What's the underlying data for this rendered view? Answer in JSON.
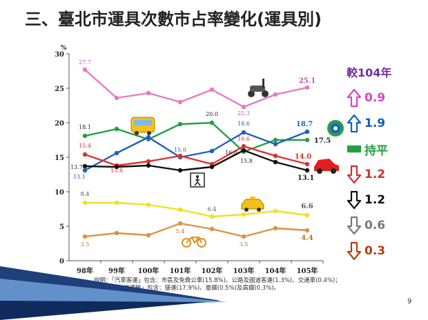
{
  "title": "三、臺北市運具次數市占率變化(運具別)",
  "legend": {
    "title": "較104年",
    "items": [
      {
        "icon": "arrow-up-icon",
        "text": "0.9",
        "color": "#e040c0"
      },
      {
        "icon": "arrow-up-icon",
        "text": "1.9",
        "color": "#1060c0"
      },
      {
        "icon": "dash-icon",
        "text": "持平",
        "color": "#22a040"
      },
      {
        "icon": "arrow-down-icon",
        "text": "1.2",
        "color": "#d03030"
      },
      {
        "icon": "arrow-down-icon",
        "text": "1.2",
        "color": "#111111"
      },
      {
        "icon": "arrow-down-icon",
        "text": "0.6",
        "color": "#777777"
      },
      {
        "icon": "arrow-down-icon",
        "text": "0.3",
        "color": "#b04010"
      }
    ]
  },
  "note": {
    "line1": "說明：「汽車客運」包含：市區及免費公車(15.8%)、公路及國道客運(1.3%)、交通車(0.4%)；",
    "line2": "「軌道運輸」包含：捷運(17.9%)、臺鐵(0.5%)及高鐵(0.3%)。"
  },
  "page_number": "9",
  "chart_data": {
    "type": "line",
    "unit_label": "%",
    "categories": [
      "98年",
      "99年",
      "100年",
      "101年",
      "102年",
      "103年",
      "104年",
      "105年"
    ],
    "yticks": [
      "0",
      "5",
      "10",
      "15",
      "20",
      "25",
      "30"
    ],
    "ylim": [
      0,
      30
    ],
    "grid": false,
    "series": [
      {
        "key": "pink",
        "color": "#e878c8",
        "values": [
          27.7,
          23.6,
          24.3,
          23.0,
          24.8,
          22.3,
          24.1,
          25.1
        ]
      },
      {
        "key": "green",
        "color": "#22a040",
        "values": [
          18.1,
          19.1,
          17.6,
          19.8,
          20.0,
          15.8,
          17.5,
          17.5
        ]
      },
      {
        "key": "blue",
        "color": "#1f5fc0",
        "values": [
          13.1,
          15.6,
          17.9,
          15.0,
          15.9,
          18.6,
          16.9,
          18.7
        ]
      },
      {
        "key": "red",
        "color": "#e03030",
        "values": [
          15.4,
          13.8,
          14.4,
          15.2,
          14.0,
          16.6,
          15.2,
          14.0
        ]
      },
      {
        "key": "black",
        "color": "#111111",
        "values": [
          13.7,
          13.6,
          13.8,
          13.1,
          13.6,
          16.0,
          14.3,
          13.1
        ]
      },
      {
        "key": "yellow",
        "color": "#f0e020",
        "values": [
          8.4,
          8.4,
          8.1,
          7.4,
          6.4,
          6.7,
          7.2,
          6.6
        ]
      },
      {
        "key": "orange",
        "color": "#e09040",
        "values": [
          3.5,
          4.0,
          3.7,
          5.4,
          4.6,
          3.5,
          4.7,
          4.4
        ]
      }
    ],
    "data_labels": [
      {
        "series": "pink",
        "index": 0,
        "text": "27.7"
      },
      {
        "series": "pink",
        "index": 5,
        "text": "22.3"
      },
      {
        "series": "pink",
        "index": 7,
        "text": "25.1"
      },
      {
        "series": "green",
        "index": 0,
        "text": "18.1"
      },
      {
        "series": "green",
        "index": 4,
        "text": "20.0"
      },
      {
        "series": "green",
        "index": 5,
        "text": "15.8"
      },
      {
        "series": "green",
        "index": 7,
        "text": "17.5"
      },
      {
        "series": "blue",
        "index": 0,
        "text": "13.1"
      },
      {
        "series": "blue",
        "index": 3,
        "text": "15.0"
      },
      {
        "series": "blue",
        "index": 5,
        "text": "18.6"
      },
      {
        "series": "blue",
        "index": 7,
        "text": "18.7"
      },
      {
        "series": "red",
        "index": 0,
        "text": "15.4"
      },
      {
        "series": "red",
        "index": 1,
        "text": "13.8"
      },
      {
        "series": "red",
        "index": 5,
        "text": "16.6"
      },
      {
        "series": "red",
        "index": 7,
        "text": "14.0"
      },
      {
        "series": "black",
        "index": 0,
        "text": "13.7"
      },
      {
        "series": "black",
        "index": 5,
        "text": "16.0"
      },
      {
        "series": "black",
        "index": 7,
        "text": "13.1"
      },
      {
        "series": "yellow",
        "index": 0,
        "text": "8.4"
      },
      {
        "series": "yellow",
        "index": 4,
        "text": "6.4"
      },
      {
        "series": "yellow",
        "index": 7,
        "text": "6.6"
      },
      {
        "series": "orange",
        "index": 0,
        "text": "3.5"
      },
      {
        "series": "orange",
        "index": 3,
        "text": "5.4"
      },
      {
        "series": "orange",
        "index": 5,
        "text": "3.5"
      },
      {
        "series": "orange",
        "index": 7,
        "text": "4.4"
      }
    ],
    "icons": [
      "scooter-icon",
      "bus-icon",
      "metro-icon",
      "car-icon",
      "pedestrian-icon",
      "taxi-icon",
      "bicycle-icon"
    ]
  }
}
